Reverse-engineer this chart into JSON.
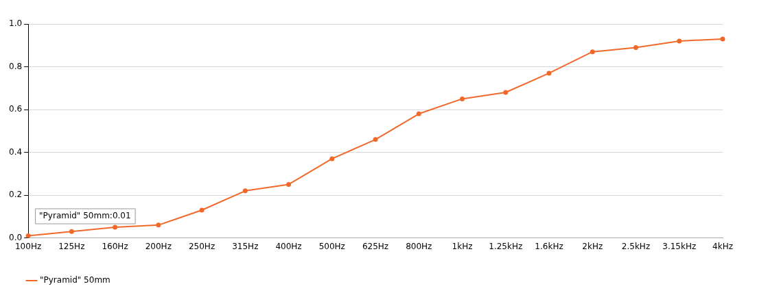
{
  "chart_data": {
    "type": "line",
    "categories": [
      "100Hz",
      "125Hz",
      "160Hz",
      "200Hz",
      "250Hz",
      "315Hz",
      "400Hz",
      "500Hz",
      "625Hz",
      "800Hz",
      "1kHz",
      "1.25kHz",
      "1.6kHz",
      "2kHz",
      "2.5kHz",
      "3.15kHz",
      "4kHz"
    ],
    "series": [
      {
        "name": "\"Pyramid\" 50mm",
        "color": "#f0692a",
        "values": [
          0.01,
          0.03,
          0.05,
          0.06,
          0.13,
          0.22,
          0.25,
          0.37,
          0.46,
          0.58,
          0.65,
          0.68,
          0.77,
          0.87,
          0.89,
          0.92,
          0.93
        ]
      }
    ],
    "ylim": [
      0,
      1
    ],
    "yticks": [
      {
        "value": 0,
        "label": "0.0"
      },
      {
        "value": 0.2,
        "label": "0.2"
      },
      {
        "value": 0.4,
        "label": "0.4"
      },
      {
        "value": 0.6,
        "label": "0.6"
      },
      {
        "value": 0.8,
        "label": "0.8"
      },
      {
        "value": 1,
        "label": "1.0"
      }
    ],
    "grid": "y",
    "legend": "bottom left",
    "marker": "circle",
    "line_style": "solid",
    "annotations": [
      {
        "text": "\"Pyramid\" 50mm:0.01",
        "x": "100Hz",
        "y": 0.01
      }
    ]
  }
}
